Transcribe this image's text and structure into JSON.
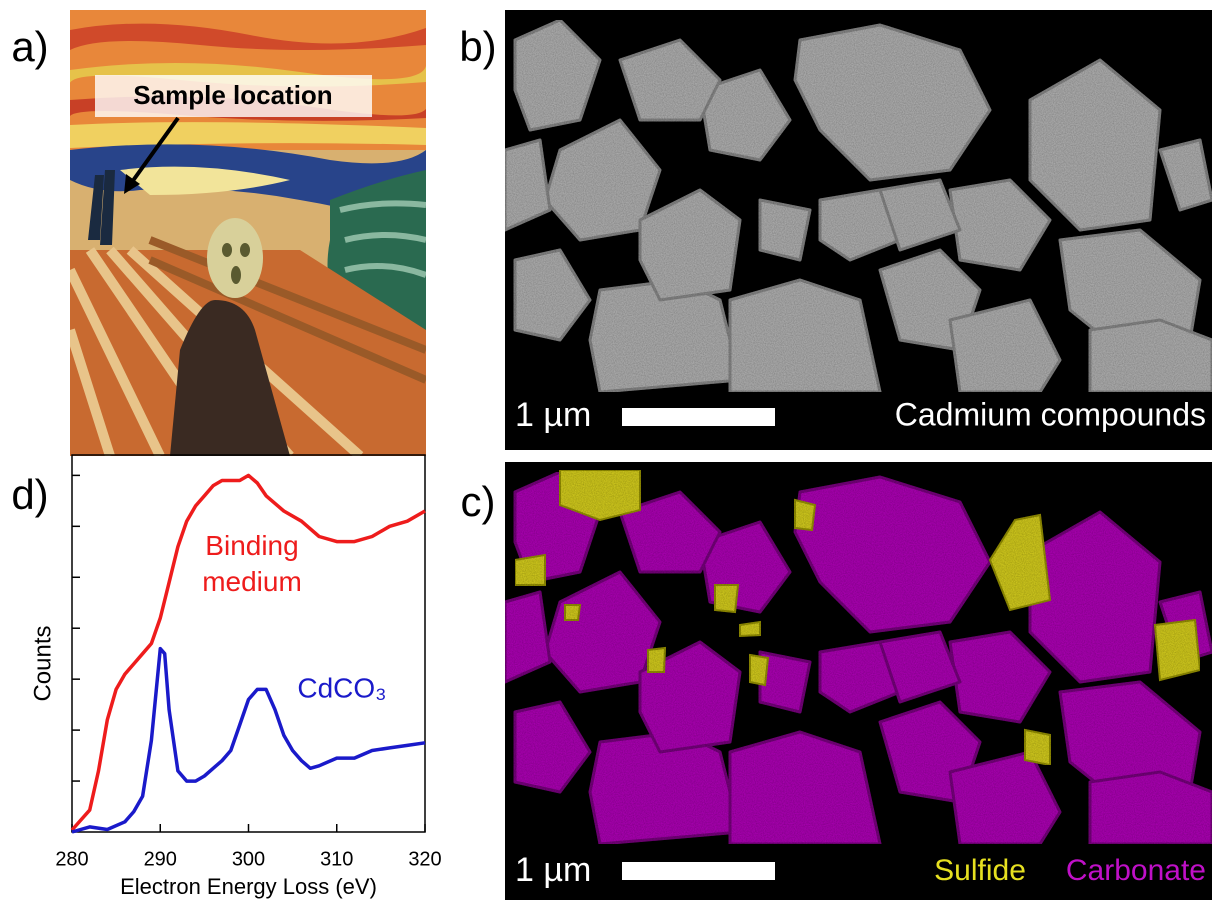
{
  "panels": {
    "a": {
      "label": "a)",
      "annotation": "Sample location"
    },
    "b": {
      "label": "b)",
      "scale_bar": "1 µm",
      "caption": "Cadmium compounds"
    },
    "c": {
      "label": "c)",
      "scale_bar": "1 µm",
      "legend": [
        {
          "name": "Sulfide",
          "color": "#e6e020"
        },
        {
          "name": "Carbonate",
          "color": "#c010c8"
        }
      ]
    },
    "d": {
      "label": "d)"
    }
  },
  "chart_data": {
    "type": "line",
    "xlabel": "Electron Energy Loss (eV)",
    "ylabel": "Counts",
    "xlim": [
      280,
      320
    ],
    "xticks": [
      280,
      290,
      300,
      310,
      320
    ],
    "ylim": [
      0,
      7.4
    ],
    "yticks": [
      1,
      2,
      3,
      4,
      5,
      6,
      7
    ],
    "ytick_labels": false,
    "series": [
      {
        "name": "Binding medium",
        "color": "#ee1c1c",
        "x": [
          280,
          282,
          283,
          284,
          285,
          286,
          287,
          288,
          289,
          290,
          291,
          292,
          293,
          294,
          295,
          296,
          297,
          298,
          299,
          300,
          301,
          302,
          304,
          306,
          308,
          310,
          312,
          314,
          316,
          318,
          320
        ],
        "values": [
          0.04,
          0.43,
          1.2,
          2.2,
          2.8,
          3.1,
          3.3,
          3.5,
          3.7,
          4.2,
          4.9,
          5.6,
          6.1,
          6.4,
          6.6,
          6.8,
          6.9,
          6.9,
          6.9,
          7.0,
          6.85,
          6.6,
          6.3,
          6.1,
          5.8,
          5.7,
          5.7,
          5.8,
          6.0,
          6.1,
          6.3
        ]
      },
      {
        "name": "CdCO₃",
        "color": "#1a1aca",
        "x": [
          280,
          282,
          284,
          286,
          287,
          288,
          289,
          290,
          290.5,
          291,
          292,
          293,
          294,
          295,
          296,
          297,
          298,
          299,
          300,
          301,
          302,
          303,
          304,
          305,
          306,
          307,
          308,
          310,
          312,
          314,
          316,
          318,
          320
        ],
        "values": [
          0,
          0.1,
          0.05,
          0.2,
          0.4,
          0.7,
          1.8,
          3.6,
          3.5,
          2.4,
          1.2,
          1.0,
          1.0,
          1.1,
          1.25,
          1.4,
          1.6,
          2.1,
          2.6,
          2.8,
          2.8,
          2.4,
          1.9,
          1.6,
          1.4,
          1.25,
          1.3,
          1.45,
          1.45,
          1.6,
          1.65,
          1.7,
          1.75
        ]
      }
    ]
  }
}
